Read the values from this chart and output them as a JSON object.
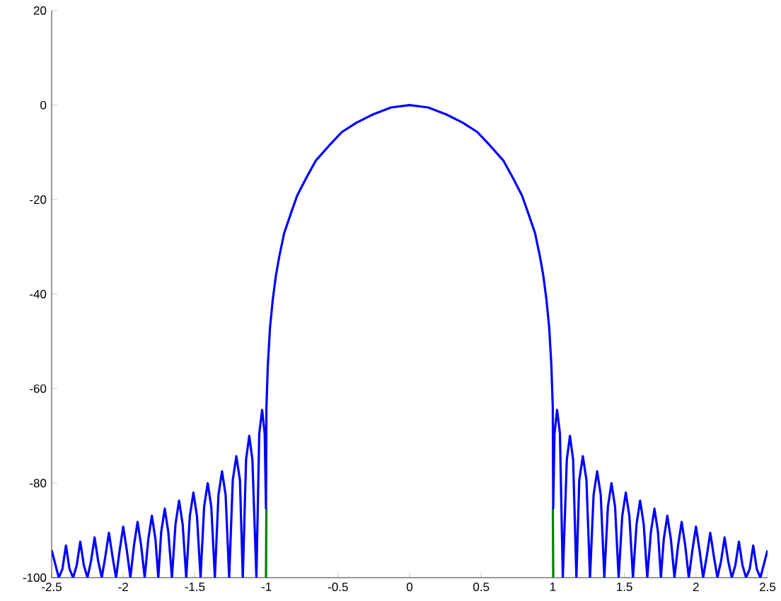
{
  "chart_data": {
    "type": "line",
    "xlim": [
      -2.5,
      2.5
    ],
    "ylim": [
      -100,
      20
    ],
    "xticks": [
      -2.5,
      -2,
      -1.5,
      -1,
      -0.5,
      0,
      0.5,
      1,
      1.5,
      2,
      2.5
    ],
    "yticks": [
      -100,
      -80,
      -60,
      -40,
      -20,
      0,
      20
    ],
    "series": [
      {
        "color": "#007f00",
        "x": [
          -1.003,
          -1.0005,
          0,
          1.0005,
          1.003
        ],
        "values": [
          -100,
          -85.3,
          null,
          -85.3,
          -100
        ]
      },
      {
        "color": "#0000ff",
        "x": [
          -2.5,
          -2.45,
          -2.425,
          -2.4,
          -2.375,
          -2.35,
          -2.325,
          -2.3,
          -2.275,
          -2.25,
          -2.225,
          -2.2,
          -2.175,
          -2.15,
          -2.125,
          -2.1,
          -2.075,
          -2.05,
          -2.025,
          -2.0,
          -1.975,
          -1.95,
          -1.925,
          -1.9,
          -1.875,
          -1.85,
          -1.825,
          -1.8,
          -1.775,
          -1.755,
          -1.735,
          -1.71,
          -1.685,
          -1.66,
          -1.635,
          -1.61,
          -1.585,
          -1.56,
          -1.535,
          -1.51,
          -1.485,
          -1.46,
          -1.435,
          -1.41,
          -1.385,
          -1.36,
          -1.335,
          -1.31,
          -1.285,
          -1.26,
          -1.235,
          -1.21,
          -1.185,
          -1.165,
          -1.142,
          -1.12,
          -1.098,
          -1.07,
          -1.05,
          -1.03,
          -1.012,
          -1.003,
          -1.0,
          -0.99,
          -0.975,
          -0.955,
          -0.934,
          -0.91,
          -0.876,
          -0.83,
          -0.786,
          -0.72,
          -0.654,
          -0.56,
          -0.473,
          -0.37,
          -0.258,
          -0.13,
          0,
          0.13,
          0.258,
          0.37,
          0.473,
          0.56,
          0.654,
          0.72,
          0.786,
          0.83,
          0.876,
          0.91,
          0.934,
          0.955,
          0.975,
          0.99,
          1.0,
          1.003,
          1.012,
          1.03,
          1.05,
          1.07,
          1.098,
          1.12,
          1.142,
          1.165,
          1.185,
          1.21,
          1.235,
          1.26,
          1.285,
          1.31,
          1.335,
          1.36,
          1.385,
          1.41,
          1.435,
          1.46,
          1.485,
          1.51,
          1.535,
          1.56,
          1.585,
          1.61,
          1.635,
          1.66,
          1.685,
          1.71,
          1.735,
          1.755,
          1.775,
          1.8,
          1.825,
          1.85,
          1.875,
          1.9,
          1.925,
          1.95,
          1.975,
          2.0,
          2.025,
          2.05,
          2.075,
          2.1,
          2.125,
          2.15,
          2.175,
          2.2,
          2.225,
          2.25,
          2.275,
          2.3,
          2.325,
          2.35,
          2.375,
          2.4,
          2.425,
          2.45,
          2.5
        ],
        "values": [
          -94.2,
          -100,
          -98.2,
          -93.2,
          -98.2,
          -100,
          -97.4,
          -92.4,
          -97.4,
          -100,
          -96.5,
          -91.5,
          -96.5,
          -100,
          -95.5,
          -90.5,
          -95.5,
          -100,
          -94.2,
          -89.2,
          -94.2,
          -100,
          -93.2,
          -88.2,
          -93.2,
          -100,
          -91.9,
          -86.9,
          -91.9,
          -100,
          -90.4,
          -85.4,
          -90.4,
          -100,
          -88.7,
          -83.7,
          -88.7,
          -100,
          -87,
          -82,
          -87,
          -100,
          -85,
          -80,
          -85,
          -100,
          -82.5,
          -77.5,
          -82.5,
          -100,
          -79.3,
          -74.3,
          -79.3,
          -100,
          -75,
          -70,
          -75,
          -100,
          -69.5,
          -64.5,
          -69.5,
          -85.3,
          -64,
          -55,
          -47.1,
          -41,
          -36.1,
          -32,
          -27.1,
          -23,
          -19.2,
          -15.3,
          -11.7,
          -8.5,
          -5.7,
          -3.7,
          -2.0,
          -0.5,
          0,
          -0.5,
          -2.0,
          -3.7,
          -5.7,
          -8.5,
          -11.7,
          -15.3,
          -19.2,
          -23,
          -27.1,
          -32,
          -36.1,
          -41,
          -47.1,
          -55,
          -64,
          -85.3,
          -69.5,
          -64.5,
          -69.5,
          -100,
          -75,
          -70,
          -75,
          -100,
          -79.3,
          -74.3,
          -79.3,
          -100,
          -82.5,
          -77.5,
          -82.5,
          -100,
          -85,
          -80,
          -85,
          -100,
          -87,
          -82,
          -87,
          -100,
          -88.7,
          -83.7,
          -88.7,
          -100,
          -90.4,
          -85.4,
          -90.4,
          -100,
          -91.9,
          -86.9,
          -91.9,
          -100,
          -93.2,
          -88.2,
          -93.2,
          -100,
          -94.2,
          -89.2,
          -94.2,
          -100,
          -95.5,
          -90.5,
          -95.5,
          -100,
          -96.5,
          -91.5,
          -96.5,
          -100,
          -97.4,
          -92.4,
          -97.4,
          -100,
          -98.2,
          -93.2,
          -98.2,
          -100,
          -94.2
        ]
      }
    ]
  }
}
